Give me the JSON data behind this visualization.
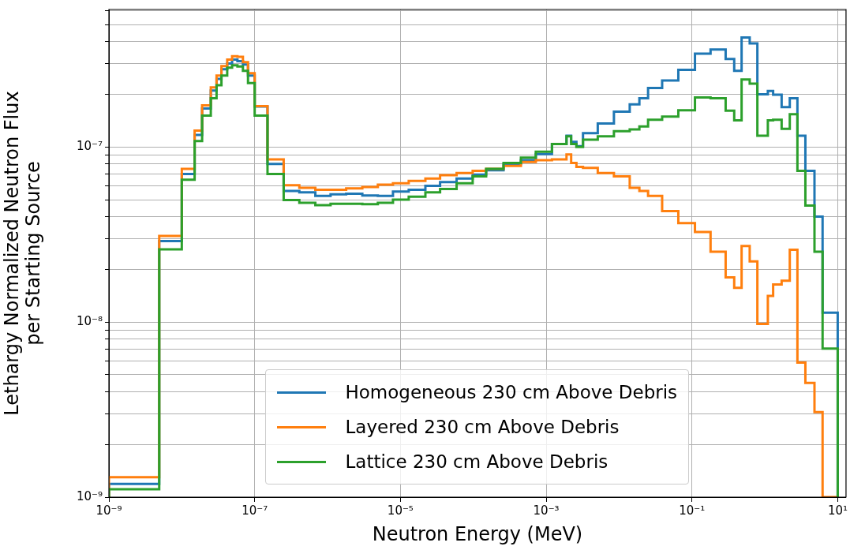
{
  "chart_data": {
    "type": "histogram",
    "xlabel": "Neutron Energy (MeV)",
    "ylabel": "Lethargy Normalized Neutron Flux\nper Starting Source",
    "bins": [
      1e-09,
      4.9e-09,
      1e-08,
      1.5e-08,
      1.9e-08,
      2.5e-08,
      3e-08,
      3.5e-08,
      4.2e-08,
      4.9e-08,
      5.8e-08,
      6.9e-08,
      8.1e-08,
      1e-07,
      1.5e-07,
      2.5e-07,
      4.1e-07,
      6.8e-07,
      1.1e-06,
      1.8e-06,
      3e-06,
      4.9e-06,
      7.9e-06,
      1.3e-05,
      2.2e-05,
      3.5e-05,
      5.9e-05,
      9.8e-05,
      0.00015,
      0.00026,
      0.00045,
      0.00072,
      0.0012,
      0.0019,
      0.0022,
      0.0026,
      0.0032,
      0.0051,
      0.0085,
      0.014,
      0.019,
      0.025,
      0.039,
      0.065,
      0.11,
      0.18,
      0.29,
      0.38,
      0.48,
      0.62,
      0.79,
      1.1,
      1.3,
      1.7,
      2.2,
      2.8,
      3.6,
      4.8,
      6.2,
      10
    ],
    "series": [
      {
        "name": "Homogeneous 230 cm Above Debris",
        "color": "#1f77b4",
        "values": [
          1.19e-09,
          2.9e-08,
          7e-08,
          1.17e-07,
          1.66e-07,
          2.1e-07,
          2.45e-07,
          2.78e-07,
          3e-07,
          3.16e-07,
          3.09e-07,
          2.96e-07,
          2.56e-07,
          1.7e-07,
          8e-08,
          5.6e-08,
          5.5e-08,
          5.25e-08,
          5.37e-08,
          5.4e-08,
          5.28e-08,
          5.25e-08,
          5.56e-08,
          5.7e-08,
          6e-08,
          6.3e-08,
          6.6e-08,
          6.95e-08,
          7.36e-08,
          8e-08,
          8.4e-08,
          9.1e-08,
          1.04e-07,
          1.16e-07,
          1.07e-07,
          1.01e-07,
          1.2e-07,
          1.36e-07,
          1.59e-07,
          1.75e-07,
          1.9e-07,
          2.17e-07,
          2.4e-07,
          2.76e-07,
          3.41e-07,
          3.6e-07,
          3.18e-07,
          2.72e-07,
          4.22e-07,
          3.9e-07,
          2e-07,
          2.09e-07,
          1.99e-07,
          1.69e-07,
          1.9e-07,
          1.16e-07,
          7.3e-08,
          4e-08,
          1.13e-08
        ]
      },
      {
        "name": "Layered 230 cm Above Debris",
        "color": "#ff7f0e",
        "values": [
          1.3e-09,
          3.1e-08,
          7.5e-08,
          1.24e-07,
          1.73e-07,
          2.19e-07,
          2.56e-07,
          2.9e-07,
          3.16e-07,
          3.3e-07,
          3.27e-07,
          3.05e-07,
          2.64e-07,
          1.71e-07,
          8.5e-08,
          6.05e-08,
          5.85e-08,
          5.7e-08,
          5.7e-08,
          5.8e-08,
          5.9e-08,
          6.1e-08,
          6.2e-08,
          6.4e-08,
          6.6e-08,
          6.9e-08,
          7.1e-08,
          7.3e-08,
          7.5e-08,
          7.8e-08,
          8.2e-08,
          8.4e-08,
          8.5e-08,
          9.05e-08,
          8.1e-08,
          7.7e-08,
          7.6e-08,
          7.1e-08,
          6.8e-08,
          5.85e-08,
          5.6e-08,
          5.26e-08,
          4.3e-08,
          3.67e-08,
          3.27e-08,
          2.52e-08,
          1.8e-08,
          1.57e-08,
          2.72e-08,
          2.22e-08,
          9.75e-09,
          1.41e-08,
          1.64e-08,
          1.72e-08,
          2.59e-08,
          5.86e-09,
          4.49e-09,
          3.06e-09,
          1e-09
        ]
      },
      {
        "name": "Lattice 230 cm Above Debris",
        "color": "#2ca02c",
        "values": [
          1.11e-09,
          2.6e-08,
          6.5e-08,
          1.08e-07,
          1.51e-07,
          1.9e-07,
          2.25e-07,
          2.56e-07,
          2.84e-07,
          2.93e-07,
          2.88e-07,
          2.72e-07,
          2.32e-07,
          1.51e-07,
          7e-08,
          4.97e-08,
          4.8e-08,
          4.65e-08,
          4.74e-08,
          4.74e-08,
          4.71e-08,
          4.8e-08,
          5e-08,
          5.2e-08,
          5.5e-08,
          5.75e-08,
          6.2e-08,
          6.8e-08,
          7.5e-08,
          8.1e-08,
          8.7e-08,
          9.4e-08,
          1.04e-07,
          1.15e-07,
          1.04e-07,
          1e-07,
          1.1e-07,
          1.15e-07,
          1.23e-07,
          1.26e-07,
          1.31e-07,
          1.43e-07,
          1.49e-07,
          1.62e-07,
          1.92e-07,
          1.9e-07,
          1.61e-07,
          1.42e-07,
          2.43e-07,
          2.3e-07,
          1.16e-07,
          1.42e-07,
          1.43e-07,
          1.27e-07,
          1.54e-07,
          7.3e-08,
          4.63e-08,
          2.52e-08,
          7.06e-09
        ]
      }
    ],
    "log": "xy",
    "xlim": [
      1e-09,
      13
    ],
    "ylim": [
      1e-09,
      6.1e-07
    ],
    "xticks": [
      {
        "value": 1e-09,
        "label": "10⁻⁹"
      },
      {
        "value": 1e-07,
        "label": "10⁻⁷"
      },
      {
        "value": 1e-05,
        "label": "10⁻⁵"
      },
      {
        "value": 0.001,
        "label": "10⁻³"
      },
      {
        "value": 0.1,
        "label": "10⁻¹"
      },
      {
        "value": 10,
        "label": "10¹"
      }
    ],
    "yticks": [
      {
        "value": 1e-09,
        "label": "10⁻⁹"
      },
      {
        "value": 2e-09,
        "label": null
      },
      {
        "value": 3e-09,
        "label": null
      },
      {
        "value": 4e-09,
        "label": null
      },
      {
        "value": 5e-09,
        "label": null
      },
      {
        "value": 6e-09,
        "label": null
      },
      {
        "value": 7e-09,
        "label": null
      },
      {
        "value": 8e-09,
        "label": null
      },
      {
        "value": 9e-09,
        "label": null
      },
      {
        "value": 1e-08,
        "label": "10⁻⁸"
      },
      {
        "value": 2e-08,
        "label": null
      },
      {
        "value": 3e-08,
        "label": null
      },
      {
        "value": 4e-08,
        "label": null
      },
      {
        "value": 5e-08,
        "label": null
      },
      {
        "value": 6e-08,
        "label": null
      },
      {
        "value": 7e-08,
        "label": null
      },
      {
        "value": 8e-08,
        "label": null
      },
      {
        "value": 9e-08,
        "label": null
      },
      {
        "value": 1e-07,
        "label": "10⁻⁷"
      },
      {
        "value": 2e-07,
        "label": null
      },
      {
        "value": 3e-07,
        "label": null
      },
      {
        "value": 4e-07,
        "label": null
      },
      {
        "value": 5e-07,
        "label": null
      },
      {
        "value": 6e-07,
        "label": null
      }
    ],
    "grid": true,
    "legend": "bottom",
    "line_style": "solid"
  }
}
